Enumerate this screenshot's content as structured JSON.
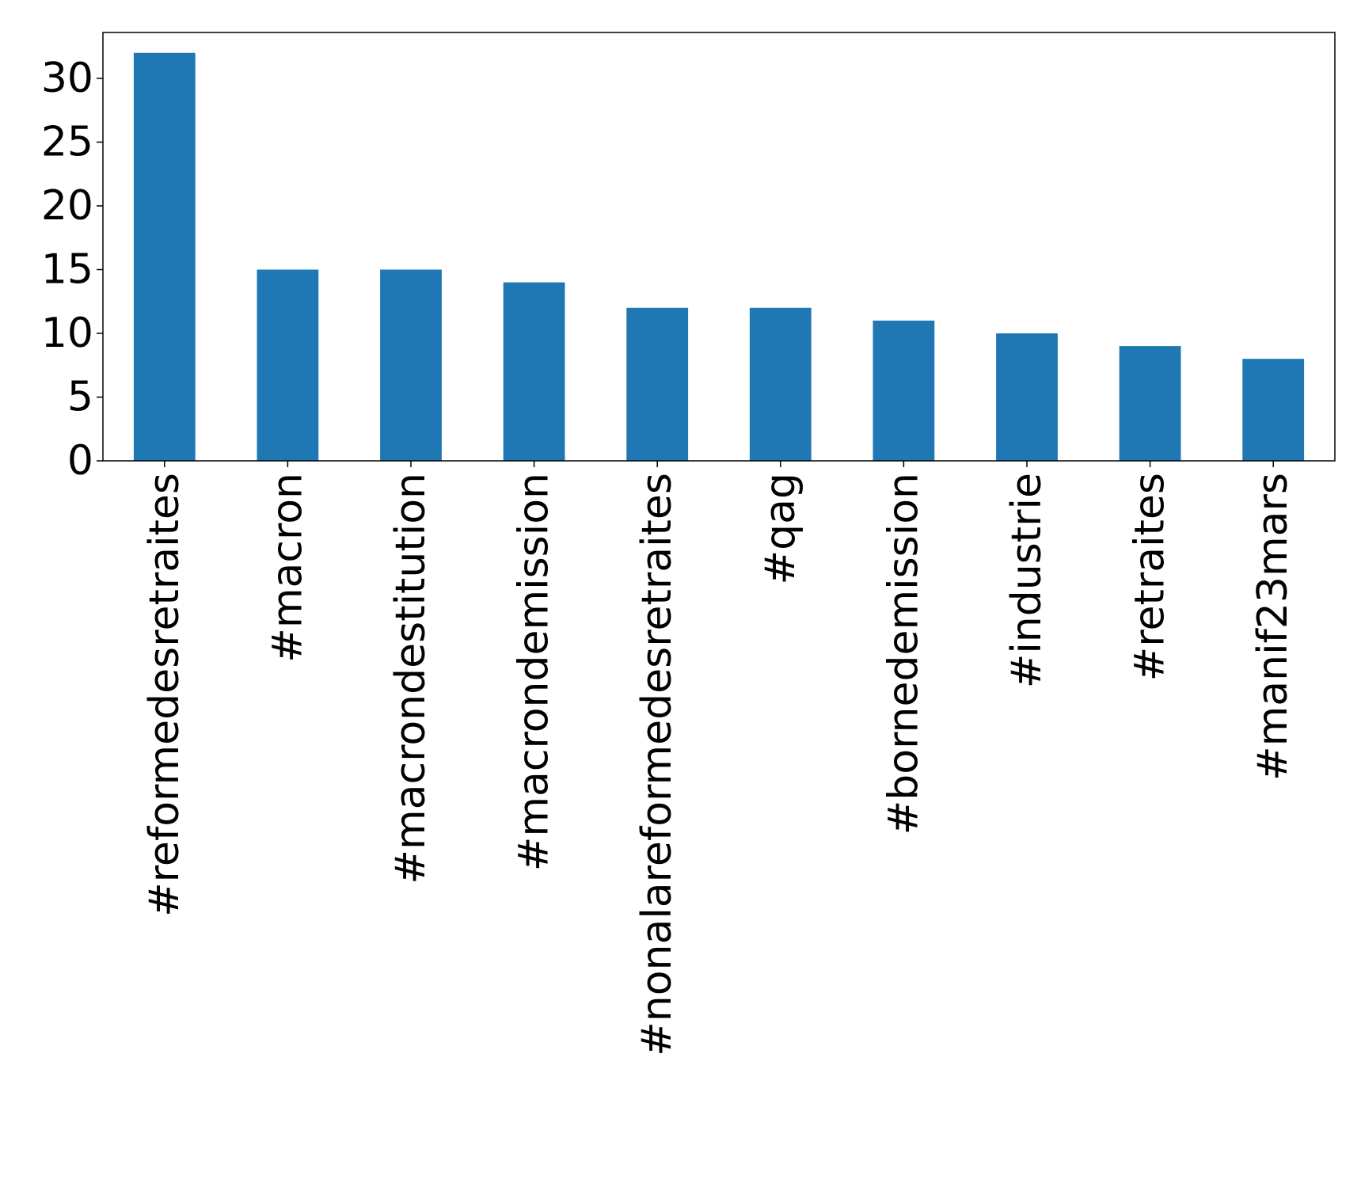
{
  "chart_data": {
    "type": "bar",
    "title": "",
    "xlabel": "",
    "ylabel": "",
    "categories": [
      "#reformedesretraites",
      "#macron",
      "#macrondestitution",
      "#macrondemission",
      "#nonalareformedesretraites",
      "#qag",
      "#bornedemission",
      "#industrie",
      "#retraites",
      "#manif23mars"
    ],
    "values": [
      32,
      15,
      15,
      14,
      12,
      12,
      11,
      10,
      9,
      8
    ],
    "ylim": [
      0,
      33.6
    ],
    "yticks": [
      0,
      5,
      10,
      15,
      20,
      25,
      30
    ],
    "grid": false,
    "legend": "none",
    "bar_color": "#1f77b4"
  }
}
